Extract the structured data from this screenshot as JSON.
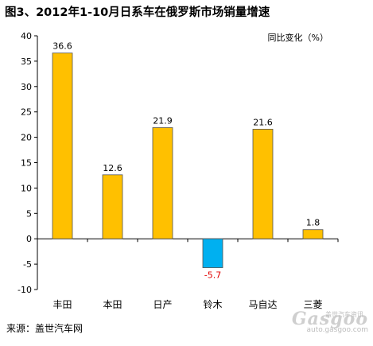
{
  "title": "图3、2012年1-10月日系车在俄罗斯市场销量增速",
  "source": "来源：盖世汽车网",
  "watermark": {
    "logo": "Gasgoo",
    "cn": "盖世汽车资讯",
    "url": "auto.gasgoo.com"
  },
  "colors": {
    "positive": "#FFC000",
    "negative": "#00B0F0",
    "negative_label": "#E00000"
  },
  "chart_data": {
    "type": "bar",
    "categories": [
      "丰田",
      "本田",
      "日产",
      "铃木",
      "马自达",
      "三菱"
    ],
    "values": [
      36.6,
      12.6,
      21.9,
      -5.7,
      21.6,
      1.8
    ],
    "value_labels": [
      "36.6",
      "12.6",
      "21.9",
      "-5.7",
      "21.6",
      "1.8"
    ],
    "ylabel": "同比变化（%）",
    "ylim": [
      -10,
      40
    ],
    "yticks": [
      -10,
      -5,
      0,
      5,
      10,
      15,
      20,
      25,
      30,
      35,
      40
    ],
    "grid": false
  }
}
